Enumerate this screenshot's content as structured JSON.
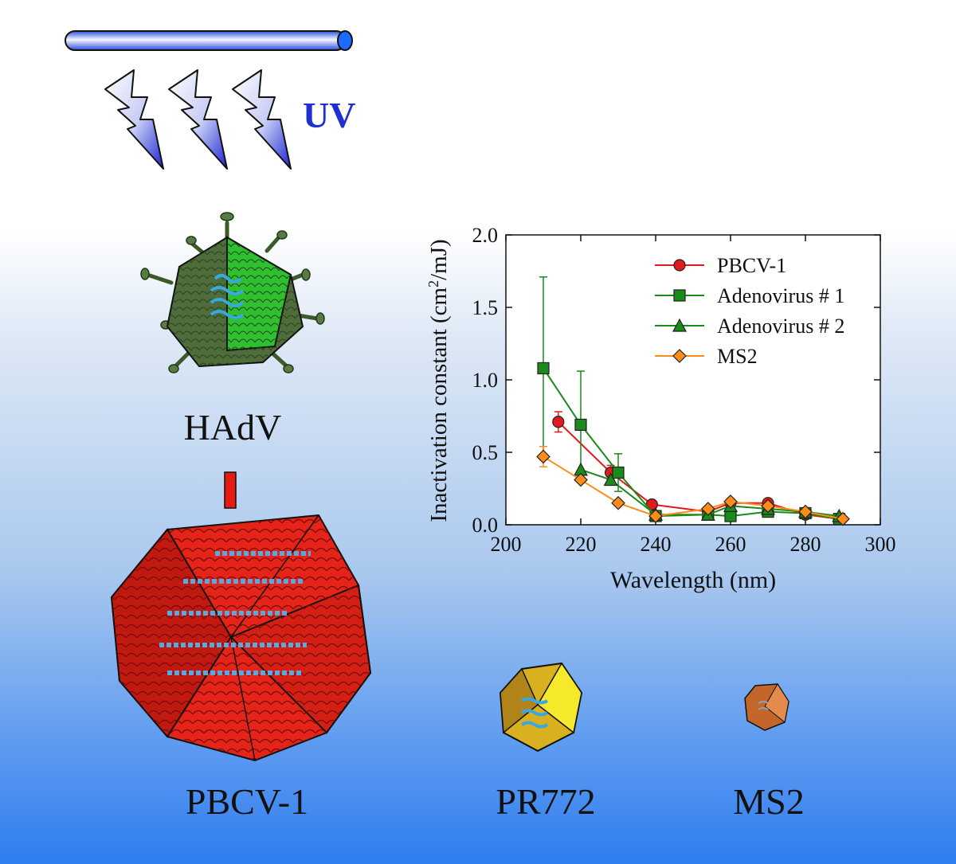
{
  "uv_label": "UV",
  "labels": {
    "hadv": "HAdV",
    "pbcv": "PBCV-1",
    "pr772": "PR772",
    "ms2": "MS2"
  },
  "colors": {
    "uv_text": "#1f2fd0",
    "pbcv": "#e31a1c",
    "adeno1": "#1a8a1a",
    "adeno2": "#1a8a1a",
    "ms2": "#ff8c1a"
  },
  "chart_data": {
    "type": "line",
    "xlabel": "Wavelength (nm)",
    "ylabel_main": "Inactivation constant (cm",
    "ylabel_sup": "2",
    "ylabel_tail": "/mJ)",
    "xlim": [
      200,
      300
    ],
    "ylim": [
      0.0,
      2.0
    ],
    "xticks": [
      200,
      220,
      240,
      260,
      280,
      300
    ],
    "xtick_labels": [
      "200",
      "220",
      "240",
      "260",
      "280",
      "300"
    ],
    "yticks": [
      0.0,
      0.5,
      1.0,
      1.5,
      2.0
    ],
    "ytick_labels": [
      "0.0",
      "0.5",
      "1.0",
      "1.5",
      "2.0"
    ],
    "legend_position": "top-right",
    "series": [
      {
        "name": "PBCV-1",
        "marker": "circle",
        "color": "#e31a1c",
        "x": [
          214,
          228,
          239,
          254,
          260,
          270,
          280,
          289
        ],
        "y": [
          0.71,
          0.36,
          0.14,
          0.09,
          0.15,
          0.15,
          0.07,
          0.04
        ],
        "err": [
          0.07,
          0.05,
          0.0,
          0.0,
          0.0,
          0.0,
          0.0,
          0.0
        ]
      },
      {
        "name": "Adenovirus # 1",
        "marker": "square",
        "color": "#1a8a1a",
        "x": [
          210,
          220,
          230,
          240,
          254,
          260,
          270,
          280,
          289
        ],
        "y": [
          1.08,
          0.69,
          0.36,
          0.06,
          0.07,
          0.06,
          0.09,
          0.08,
          0.04
        ],
        "err": [
          0.63,
          0.37,
          0.13,
          0.0,
          0.0,
          0.0,
          0.0,
          0.0,
          0.0
        ]
      },
      {
        "name": "Adenovirus # 2",
        "marker": "triangle",
        "color": "#1a8a1a",
        "x": [
          220,
          228,
          240,
          254,
          260,
          270,
          280,
          289
        ],
        "y": [
          0.38,
          0.31,
          0.07,
          0.07,
          0.13,
          0.11,
          0.09,
          0.06
        ],
        "err": [
          0.0,
          0.0,
          0.0,
          0.0,
          0.0,
          0.0,
          0.0,
          0.0
        ]
      },
      {
        "name": "MS2",
        "marker": "diamond",
        "color": "#ff8c1a",
        "x": [
          210,
          220,
          230,
          240,
          254,
          260,
          270,
          280,
          290
        ],
        "y": [
          0.47,
          0.31,
          0.15,
          0.06,
          0.11,
          0.16,
          0.13,
          0.09,
          0.04
        ],
        "err": [
          0.07,
          0.0,
          0.0,
          0.0,
          0.0,
          0.0,
          0.0,
          0.0,
          0.0
        ]
      }
    ]
  }
}
